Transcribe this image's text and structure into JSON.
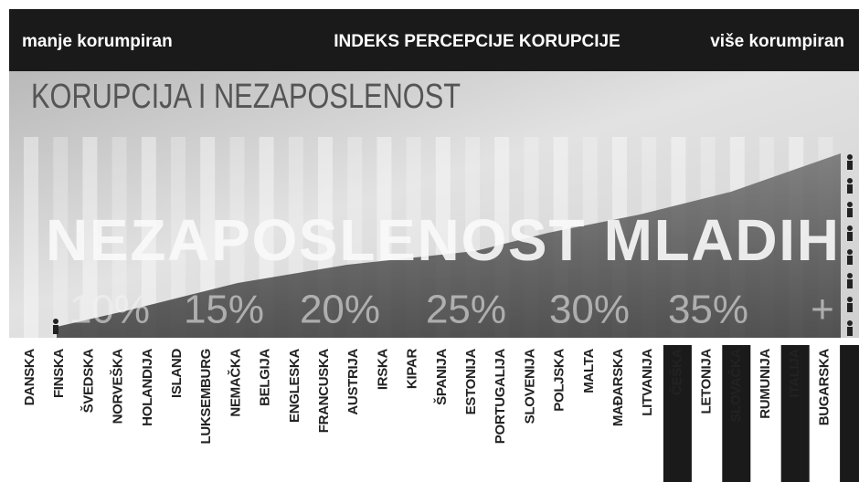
{
  "header": {
    "left": "manje korumpiran",
    "center": "INDEKS PERCEPCIJE KORUPCIJE",
    "right": "više korumpiran"
  },
  "title": "KORUPCIJA I NEZAPOSLENOST",
  "headline": "NEZAPOSLENOST MLADIH",
  "scale_labels": [
    "10%",
    "15%",
    "20%",
    "25%",
    "30%",
    "35%",
    "+"
  ],
  "countries": [
    "DANSKA",
    "FINSKA",
    "ŠVEDSKA",
    "NORVEŠKA",
    "HOLANDIJA",
    "ISLAND",
    "LUKSEMBURG",
    "NEMAČKA",
    "BELGIJA",
    "ENGLESKA",
    "FRANCUSKA",
    "AUSTRIJA",
    "IRSKA",
    "KIPAR",
    "ŠPANIJA",
    "ESTONIJA",
    "PORTUGALIJA",
    "SLOVENIJA",
    "POLJSKA",
    "MALTA",
    "MAĐARSKA",
    "LITVANIJA",
    "ČEŠKA",
    "LETONIJA",
    "SLOVAČKA",
    "RUMUNIJA",
    "ITALIJA",
    "BUGARSKA"
  ]
}
